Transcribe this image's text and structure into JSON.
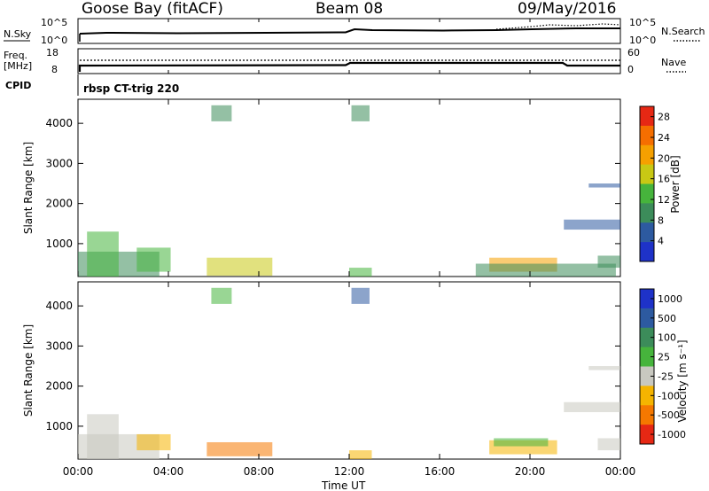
{
  "header": {
    "station": "Goose Bay (fitACF)",
    "beam": "Beam 08",
    "date": "09/May/2016"
  },
  "panels": {
    "nsky": {
      "label": "N.Sky",
      "ticks": [
        "10^5",
        "10^0"
      ]
    },
    "nsearch": {
      "label": "N.Search",
      "ticks": [
        "10^5",
        "10^0"
      ]
    },
    "freq": {
      "label_line1": "Freq.",
      "label_line2": "[MHz]",
      "ticks": [
        "18",
        "8"
      ]
    },
    "nave": {
      "label": "Nave",
      "ticks": [
        "60",
        "0"
      ]
    },
    "cpid": {
      "label": "CPID",
      "program": "rbsp CT-trig 220"
    }
  },
  "colors": {
    "power_scale": [
      "#1e32c8",
      "#2d5aa0",
      "#3c8c5a",
      "#46b43c",
      "#c8c814",
      "#f5a000",
      "#f56e00",
      "#e62814"
    ],
    "velocity_scale": [
      "#1e32c8",
      "#2d5aa0",
      "#3c8c5a",
      "#46b43c",
      "#c8c8c0",
      "#f5b400",
      "#f57800",
      "#e62814"
    ]
  },
  "chart_data": [
    {
      "type": "heatmap",
      "title": "",
      "xlabel": "",
      "ylabel": "Slant Range [km]",
      "xlim": [
        "00:00",
        "24:00"
      ],
      "ylim": [
        180,
        4600
      ],
      "yticks": [
        "1000",
        "2000",
        "3000",
        "4000"
      ],
      "colorbar_label": "Power [dB]",
      "colorbar_ticks": [
        "4",
        "8",
        "12",
        "16",
        "20",
        "24",
        "28"
      ],
      "colorbar_range": [
        0,
        30
      ],
      "regions": [
        {
          "t0": 0.0,
          "t1": 3.6,
          "r0": 180,
          "r1": 800,
          "level": 2
        },
        {
          "t0": 0.4,
          "t1": 1.8,
          "r0": 180,
          "r1": 1300,
          "level": 3
        },
        {
          "t0": 2.6,
          "t1": 4.1,
          "r0": 300,
          "r1": 900,
          "level": 3
        },
        {
          "t0": 5.7,
          "t1": 8.6,
          "r0": 200,
          "r1": 650,
          "level": 4
        },
        {
          "t0": 5.9,
          "t1": 6.8,
          "r0": 4050,
          "r1": 4450,
          "level": 2
        },
        {
          "t0": 12.1,
          "t1": 12.9,
          "r0": 4050,
          "r1": 4450,
          "level": 2
        },
        {
          "t0": 12.0,
          "t1": 13.0,
          "r0": 180,
          "r1": 400,
          "level": 3
        },
        {
          "t0": 18.2,
          "t1": 21.2,
          "r0": 300,
          "r1": 650,
          "level": 5
        },
        {
          "t0": 17.6,
          "t1": 23.8,
          "r0": 180,
          "r1": 500,
          "level": 2
        },
        {
          "t0": 21.5,
          "t1": 24.0,
          "r0": 1350,
          "r1": 1600,
          "level": 1
        },
        {
          "t0": 22.6,
          "t1": 24.0,
          "r0": 2400,
          "r1": 2500,
          "level": 1
        },
        {
          "t0": 23.0,
          "t1": 24.0,
          "r0": 400,
          "r1": 700,
          "level": 2
        }
      ]
    },
    {
      "type": "heatmap",
      "title": "",
      "xlabel": "Time UT",
      "ylabel": "Slant Range [km]",
      "xlim": [
        "00:00",
        "24:00"
      ],
      "ylim": [
        180,
        4600
      ],
      "xticks": [
        "00:00",
        "04:00",
        "08:00",
        "12:00",
        "16:00",
        "20:00",
        "00:00"
      ],
      "yticks": [
        "1000",
        "2000",
        "3000",
        "4000"
      ],
      "colorbar_label": "Velocity [m s⁻¹]",
      "colorbar_ticks": [
        "1000",
        "500",
        "100",
        "25",
        "-25",
        "-100",
        "-500",
        "-1000"
      ],
      "regions": [
        {
          "t0": 0.0,
          "t1": 3.6,
          "r0": 180,
          "r1": 800,
          "level": 4
        },
        {
          "t0": 0.4,
          "t1": 1.8,
          "r0": 180,
          "r1": 1300,
          "level": 4
        },
        {
          "t0": 2.6,
          "t1": 4.1,
          "r0": 400,
          "r1": 800,
          "level": 5
        },
        {
          "t0": 5.7,
          "t1": 8.6,
          "r0": 250,
          "r1": 600,
          "level": 6
        },
        {
          "t0": 5.9,
          "t1": 6.8,
          "r0": 4050,
          "r1": 4450,
          "level": 3
        },
        {
          "t0": 12.1,
          "t1": 12.9,
          "r0": 4050,
          "r1": 4450,
          "level": 1
        },
        {
          "t0": 12.0,
          "t1": 13.0,
          "r0": 180,
          "r1": 400,
          "level": 5
        },
        {
          "t0": 18.2,
          "t1": 21.2,
          "r0": 300,
          "r1": 650,
          "level": 5
        },
        {
          "t0": 18.4,
          "t1": 20.8,
          "r0": 500,
          "r1": 700,
          "level": 3
        },
        {
          "t0": 21.5,
          "t1": 24.0,
          "r0": 1350,
          "r1": 1600,
          "level": 4
        },
        {
          "t0": 22.6,
          "t1": 24.0,
          "r0": 2400,
          "r1": 2500,
          "level": 4
        },
        {
          "t0": 23.0,
          "t1": 24.0,
          "r0": 400,
          "r1": 700,
          "level": 4
        }
      ]
    }
  ]
}
